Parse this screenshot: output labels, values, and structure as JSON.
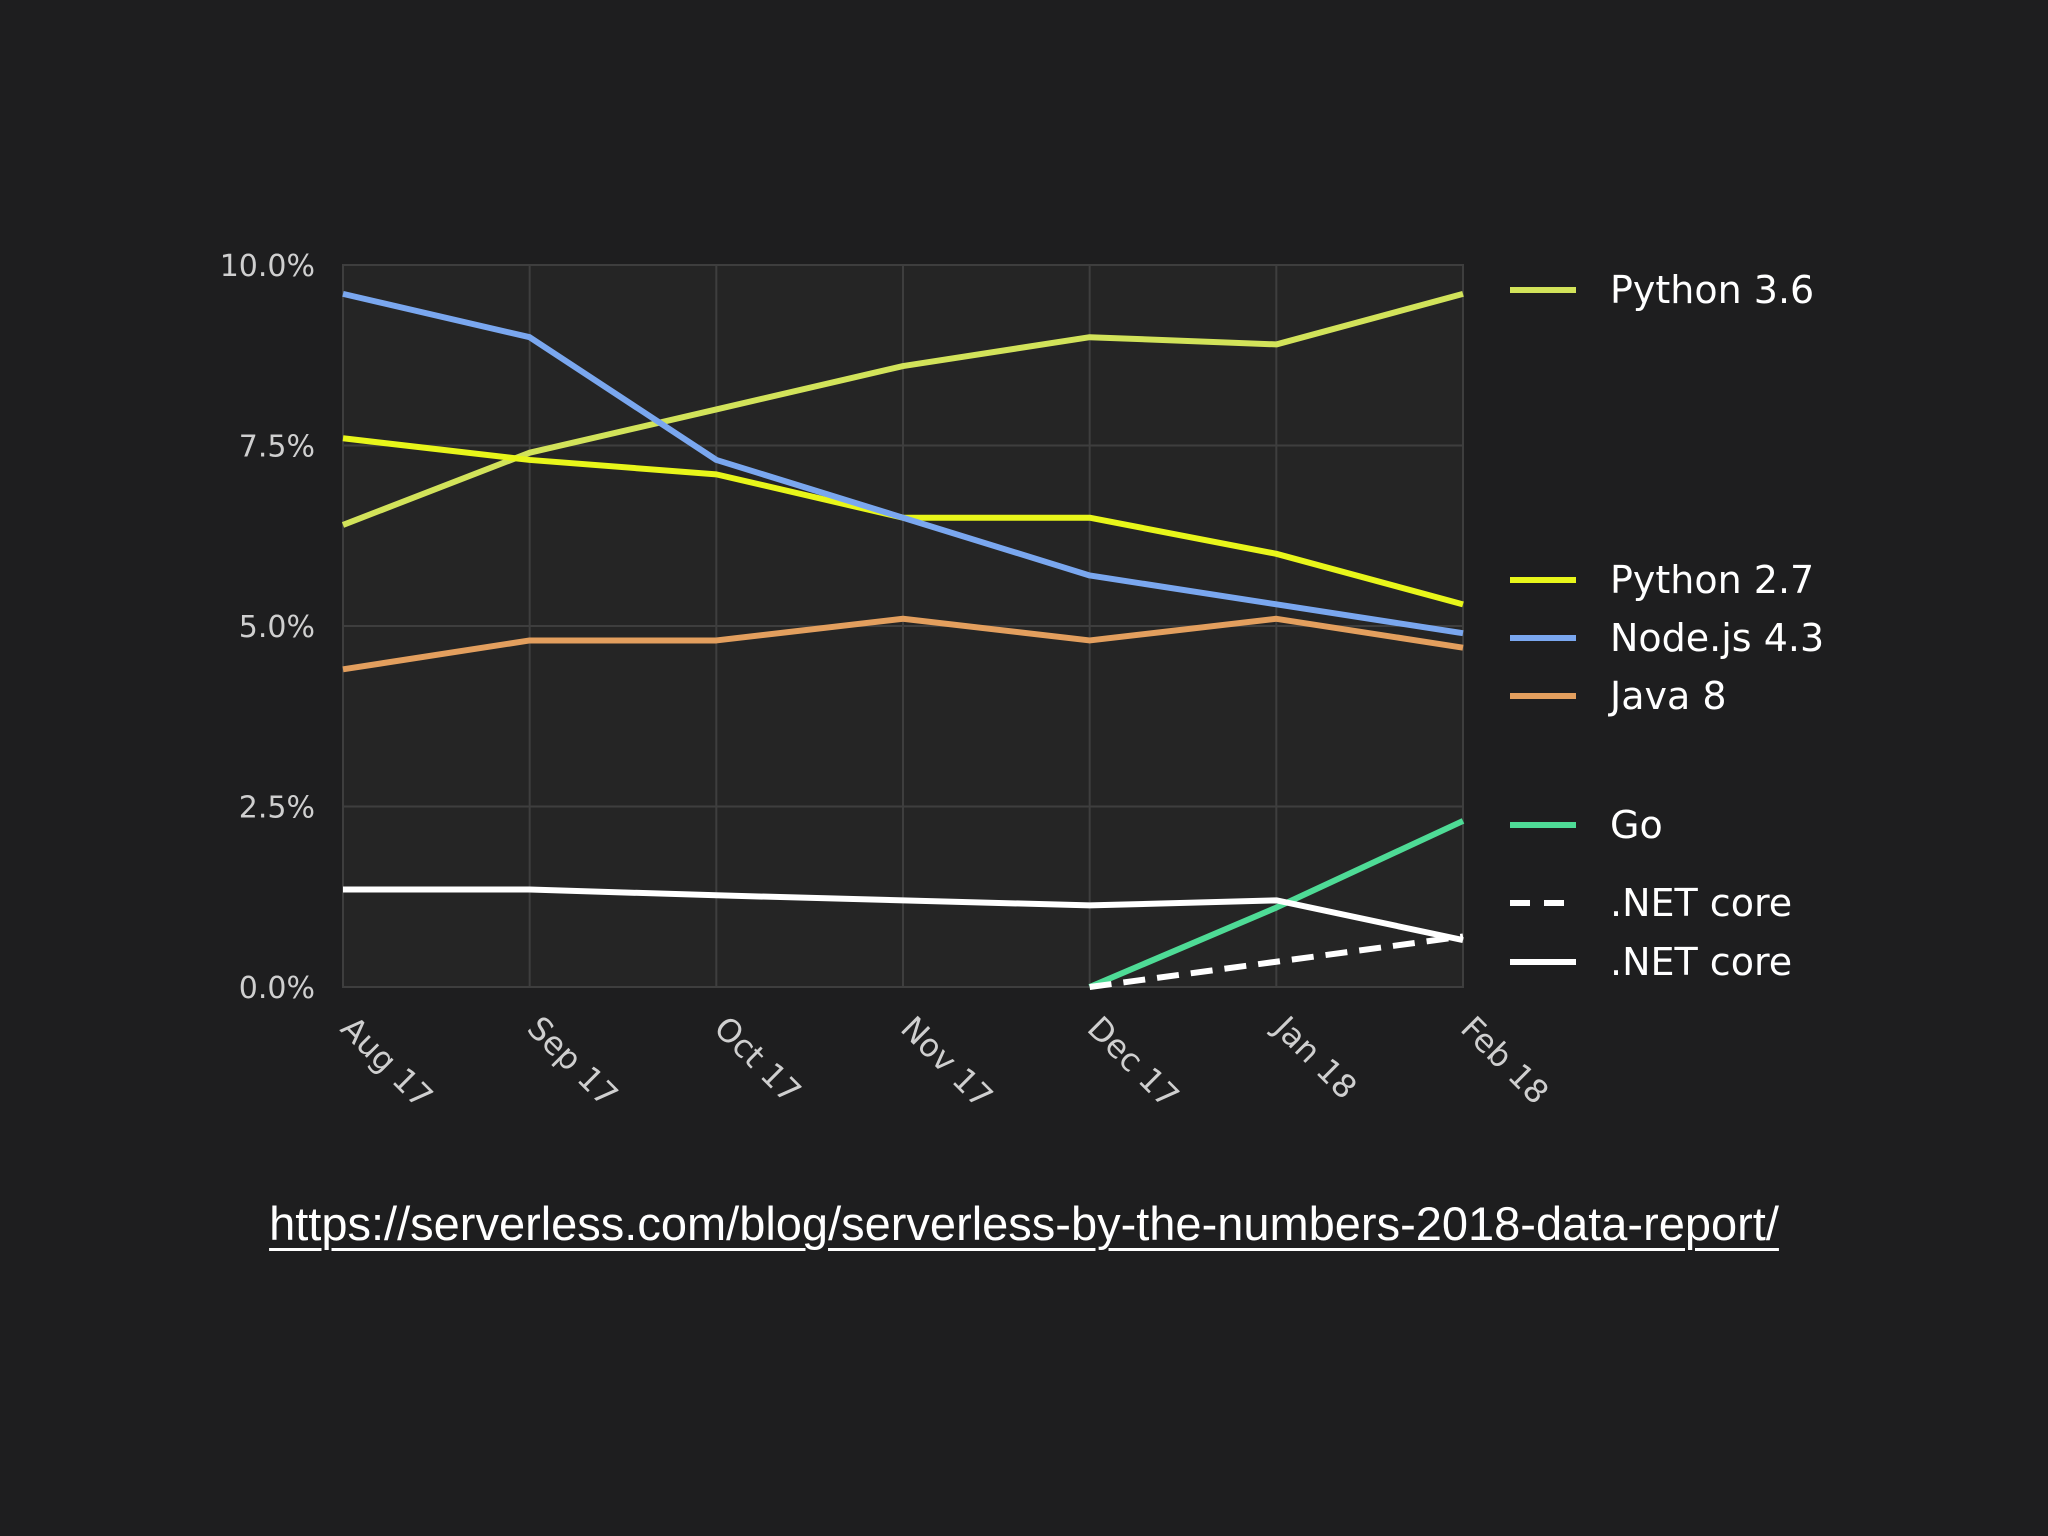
{
  "chart_data": {
    "type": "line",
    "x": [
      "Aug 17",
      "Sep 17",
      "Oct 17",
      "Nov 17",
      "Dec 17",
      "Jan 18",
      "Feb 18"
    ],
    "ylim": [
      0,
      10
    ],
    "yticks": [
      "0.0%",
      "2.5%",
      "5.0%",
      "7.5%",
      "10.0%"
    ],
    "ytick_values": [
      0,
      2.5,
      5,
      7.5,
      10
    ],
    "grid": true,
    "legend_position": "right",
    "series": [
      {
        "name": "Python 3.6",
        "color": "#d2e35a",
        "dash": false,
        "values": [
          6.4,
          7.4,
          8.0,
          8.6,
          9.0,
          8.9,
          9.6
        ]
      },
      {
        "name": "Python 2.7",
        "color": "#e8f61a",
        "dash": false,
        "values": [
          7.6,
          7.3,
          7.1,
          6.5,
          6.5,
          6.0,
          5.3
        ]
      },
      {
        "name": "Node.js 4.3",
        "color": "#7aa7ef",
        "dash": false,
        "values": [
          9.6,
          9.0,
          7.3,
          6.5,
          5.7,
          5.3,
          4.9
        ]
      },
      {
        "name": "Java 8",
        "color": "#e39f5e",
        "dash": false,
        "values": [
          4.4,
          4.8,
          4.8,
          5.1,
          4.8,
          5.1,
          4.7
        ]
      },
      {
        "name": "Go",
        "color": "#4edb96",
        "dash": false,
        "values": [
          null,
          null,
          null,
          null,
          0.0,
          1.1,
          2.3
        ]
      },
      {
        "name": ".NET core",
        "color": "#ffffff",
        "dash": true,
        "values": [
          null,
          null,
          null,
          null,
          0.0,
          0.35,
          0.7
        ]
      },
      {
        "name": ".NET core",
        "color": "#ffffff",
        "dash": false,
        "values": [
          1.35,
          1.35,
          1.27,
          1.2,
          1.13,
          1.2,
          0.65
        ]
      }
    ]
  },
  "footer": {
    "link_text": "https://serverless.com/blog/serverless-by-the-numbers-2018-data-report/"
  }
}
